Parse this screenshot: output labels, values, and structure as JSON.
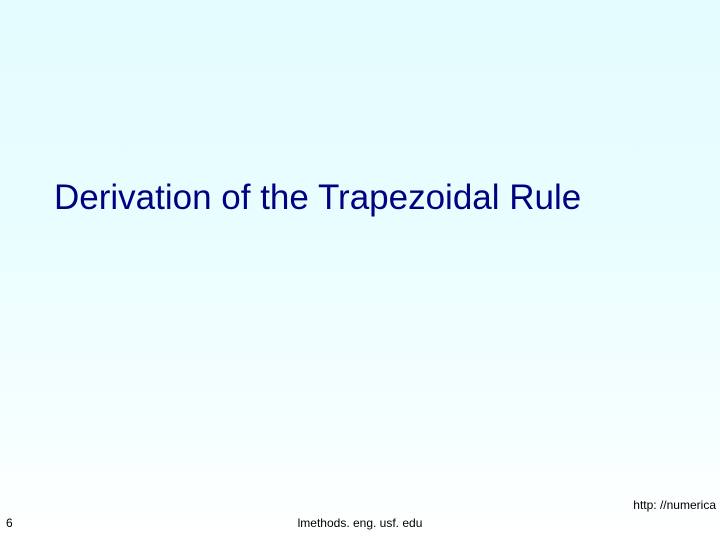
{
  "slide": {
    "title": "Derivation of the Trapezoidal Rule",
    "page_number": "6",
    "footer_center": "lmethods. eng. usf. edu",
    "footer_right": "http: //numerica",
    "background_gradient": {
      "top": "#e4fcff",
      "bottom": "#ffffff"
    },
    "title_color": "#000080",
    "title_fontsize": 35,
    "footer_fontsize": 12
  }
}
